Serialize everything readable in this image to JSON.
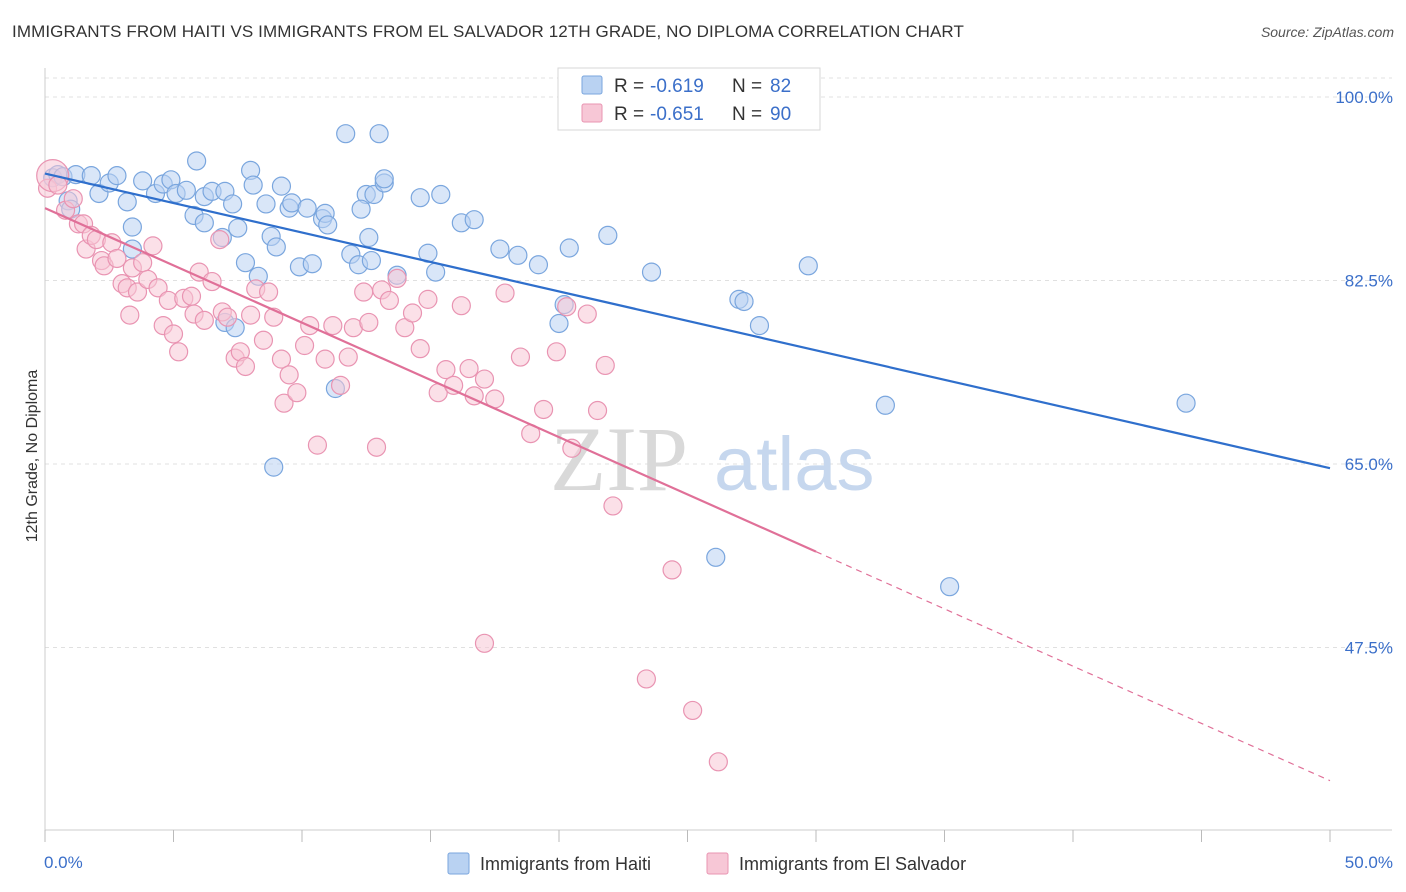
{
  "header": {
    "title": "IMMIGRANTS FROM HAITI VS IMMIGRANTS FROM EL SALVADOR 12TH GRADE, NO DIPLOMA CORRELATION CHART",
    "source": "Source: ZipAtlas.com"
  },
  "watermark": {
    "zip": "ZIP",
    "atlas": "atlas"
  },
  "colors": {
    "haiti_fill": "#b9d2f2",
    "haiti_stroke": "#7aa6de",
    "haiti_line": "#2f6fcc",
    "elsal_fill": "#f7c7d6",
    "elsal_stroke": "#e994b2",
    "elsal_line": "#e07098",
    "tick_text": "#3b6fc9",
    "grid": "#e0e0e0"
  },
  "chart_data": {
    "type": "scatter",
    "title": "IMMIGRANTS FROM HAITI VS IMMIGRANTS FROM EL SALVADOR 12TH GRADE, NO DIPLOMA CORRELATION CHART",
    "xlabel": "",
    "ylabel": "12th Grade, No Diploma",
    "xlim": [
      0,
      50
    ],
    "ylim": [
      31,
      102
    ],
    "x_tick_labels": {
      "left": "0.0%",
      "right": "50.0%"
    },
    "y_ticks": [
      {
        "value": 100,
        "label": "100.0%"
      },
      {
        "value": 82.5,
        "label": "82.5%"
      },
      {
        "value": 65,
        "label": "65.0%"
      },
      {
        "value": 47.5,
        "label": "47.5%"
      }
    ],
    "grid": true,
    "legend_position": "top-center",
    "stats_legend": [
      {
        "r_label": "R = ",
        "r_value": "-0.619",
        "n_label": "N = ",
        "n_value": "82"
      },
      {
        "r_label": "R = ",
        "r_value": "-0.651",
        "n_label": "N = ",
        "n_value": "90"
      }
    ],
    "series": [
      {
        "name": "Immigrants from Haiti",
        "color": "#7aa6de",
        "trend": {
          "x": [
            0,
            50
          ],
          "y": [
            92.7,
            64.6
          ],
          "dashed_from": null
        },
        "points": [
          [
            0.3,
            92.3
          ],
          [
            0.5,
            92.6
          ],
          [
            0.7,
            92.4
          ],
          [
            0.9,
            90.1
          ],
          [
            1.0,
            89.3
          ],
          [
            1.2,
            92.6
          ],
          [
            1.8,
            92.5
          ],
          [
            2.1,
            90.8
          ],
          [
            2.5,
            91.8
          ],
          [
            2.8,
            92.5
          ],
          [
            3.2,
            90.0
          ],
          [
            3.4,
            85.5
          ],
          [
            3.8,
            92.0
          ],
          [
            4.3,
            90.8
          ],
          [
            4.6,
            91.7
          ],
          [
            4.9,
            92.1
          ],
          [
            5.1,
            90.8
          ],
          [
            5.5,
            91.1
          ],
          [
            5.8,
            88.7
          ],
          [
            5.9,
            93.9
          ],
          [
            6.2,
            90.5
          ],
          [
            6.5,
            91.0
          ],
          [
            6.9,
            86.6
          ],
          [
            7.0,
            78.5
          ],
          [
            7.4,
            78.0
          ],
          [
            7.0,
            91.0
          ],
          [
            7.5,
            87.5
          ],
          [
            7.3,
            89.8
          ],
          [
            7.8,
            84.2
          ],
          [
            8.0,
            93.0
          ],
          [
            8.1,
            91.6
          ],
          [
            8.3,
            82.9
          ],
          [
            8.6,
            89.8
          ],
          [
            8.8,
            86.7
          ],
          [
            8.9,
            64.7
          ],
          [
            9.2,
            91.5
          ],
          [
            9.5,
            89.4
          ],
          [
            9.9,
            83.8
          ],
          [
            9.6,
            89.9
          ],
          [
            10.2,
            89.4
          ],
          [
            10.4,
            84.1
          ],
          [
            10.8,
            88.4
          ],
          [
            10.9,
            88.9
          ],
          [
            11.0,
            87.8
          ],
          [
            11.3,
            72.2
          ],
          [
            11.7,
            96.5
          ],
          [
            11.9,
            85.0
          ],
          [
            12.2,
            84.0
          ],
          [
            12.5,
            90.7
          ],
          [
            12.8,
            90.7
          ],
          [
            12.6,
            86.6
          ],
          [
            12.7,
            84.4
          ],
          [
            13.0,
            96.5
          ],
          [
            13.2,
            91.8
          ],
          [
            13.2,
            92.2
          ],
          [
            13.7,
            83.0
          ],
          [
            14.6,
            90.4
          ],
          [
            14.9,
            85.1
          ],
          [
            15.2,
            83.3
          ],
          [
            15.4,
            90.7
          ],
          [
            16.2,
            88.0
          ],
          [
            16.7,
            88.3
          ],
          [
            17.7,
            85.5
          ],
          [
            18.4,
            84.9
          ],
          [
            19.2,
            84.0
          ],
          [
            20.0,
            78.4
          ],
          [
            20.2,
            80.2
          ],
          [
            20.4,
            85.6
          ],
          [
            21.9,
            86.8
          ],
          [
            23.6,
            83.3
          ],
          [
            27.0,
            80.7
          ],
          [
            27.2,
            80.5
          ],
          [
            27.8,
            78.2
          ],
          [
            29.7,
            83.9
          ],
          [
            32.7,
            70.6
          ],
          [
            44.4,
            70.8
          ],
          [
            26.1,
            56.1
          ],
          [
            35.2,
            53.3
          ],
          [
            3.4,
            87.6
          ],
          [
            6.2,
            88.0
          ],
          [
            12.3,
            89.3
          ],
          [
            9.0,
            85.7
          ]
        ]
      },
      {
        "name": "Immigrants from El Salvador",
        "color": "#e994b2",
        "trend": {
          "x": [
            0,
            50
          ],
          "y": [
            89.4,
            34.8
          ],
          "dashed_from": 30
        },
        "points": [
          [
            0.1,
            91.3
          ],
          [
            0.3,
            92.5
          ],
          [
            0.5,
            91.6
          ],
          [
            0.8,
            89.2
          ],
          [
            1.1,
            90.3
          ],
          [
            1.3,
            87.9
          ],
          [
            1.5,
            87.9
          ],
          [
            1.6,
            85.5
          ],
          [
            1.8,
            86.8
          ],
          [
            2.0,
            86.4
          ],
          [
            2.2,
            84.4
          ],
          [
            2.3,
            83.9
          ],
          [
            2.6,
            86.1
          ],
          [
            2.8,
            84.6
          ],
          [
            3.0,
            82.2
          ],
          [
            3.2,
            81.8
          ],
          [
            3.4,
            83.7
          ],
          [
            3.3,
            79.2
          ],
          [
            3.6,
            81.4
          ],
          [
            3.8,
            84.2
          ],
          [
            4.0,
            82.6
          ],
          [
            4.2,
            85.8
          ],
          [
            4.4,
            81.8
          ],
          [
            4.6,
            78.2
          ],
          [
            4.8,
            80.6
          ],
          [
            5.0,
            77.4
          ],
          [
            5.2,
            75.7
          ],
          [
            5.4,
            80.8
          ],
          [
            5.7,
            81.0
          ],
          [
            5.8,
            79.3
          ],
          [
            6.0,
            83.3
          ],
          [
            6.2,
            78.7
          ],
          [
            6.5,
            82.4
          ],
          [
            6.8,
            86.4
          ],
          [
            6.9,
            79.5
          ],
          [
            7.1,
            79.0
          ],
          [
            7.4,
            75.1
          ],
          [
            7.6,
            75.7
          ],
          [
            7.8,
            74.3
          ],
          [
            8.0,
            79.2
          ],
          [
            8.2,
            81.7
          ],
          [
            8.5,
            76.8
          ],
          [
            8.7,
            81.4
          ],
          [
            8.9,
            79.0
          ],
          [
            9.2,
            75.0
          ],
          [
            9.5,
            73.5
          ],
          [
            9.3,
            70.8
          ],
          [
            9.8,
            71.8
          ],
          [
            10.1,
            76.3
          ],
          [
            10.3,
            78.2
          ],
          [
            10.6,
            66.8
          ],
          [
            10.9,
            75.0
          ],
          [
            11.2,
            78.2
          ],
          [
            11.5,
            72.5
          ],
          [
            11.8,
            75.2
          ],
          [
            12.0,
            78.0
          ],
          [
            12.4,
            81.4
          ],
          [
            12.6,
            78.5
          ],
          [
            12.9,
            66.6
          ],
          [
            13.1,
            81.6
          ],
          [
            13.4,
            80.6
          ],
          [
            13.7,
            82.7
          ],
          [
            14.0,
            78.0
          ],
          [
            14.3,
            79.4
          ],
          [
            14.6,
            76.0
          ],
          [
            14.9,
            80.7
          ],
          [
            15.3,
            71.8
          ],
          [
            15.6,
            74.0
          ],
          [
            15.9,
            72.5
          ],
          [
            16.2,
            80.1
          ],
          [
            16.5,
            74.1
          ],
          [
            16.7,
            71.5
          ],
          [
            17.1,
            73.1
          ],
          [
            17.5,
            71.2
          ],
          [
            17.9,
            81.3
          ],
          [
            18.5,
            75.2
          ],
          [
            18.9,
            67.9
          ],
          [
            19.4,
            70.2
          ],
          [
            19.9,
            75.7
          ],
          [
            20.3,
            80.0
          ],
          [
            20.5,
            66.5
          ],
          [
            21.1,
            79.3
          ],
          [
            21.5,
            70.1
          ],
          [
            21.8,
            74.4
          ],
          [
            22.1,
            61.0
          ],
          [
            23.4,
            44.5
          ],
          [
            24.4,
            54.9
          ],
          [
            25.2,
            41.5
          ],
          [
            26.2,
            36.6
          ],
          [
            17.1,
            47.9
          ]
        ]
      }
    ]
  },
  "legend_bottom": [
    {
      "label": "Immigrants from Haiti"
    },
    {
      "label": "Immigrants from El Salvador"
    }
  ]
}
